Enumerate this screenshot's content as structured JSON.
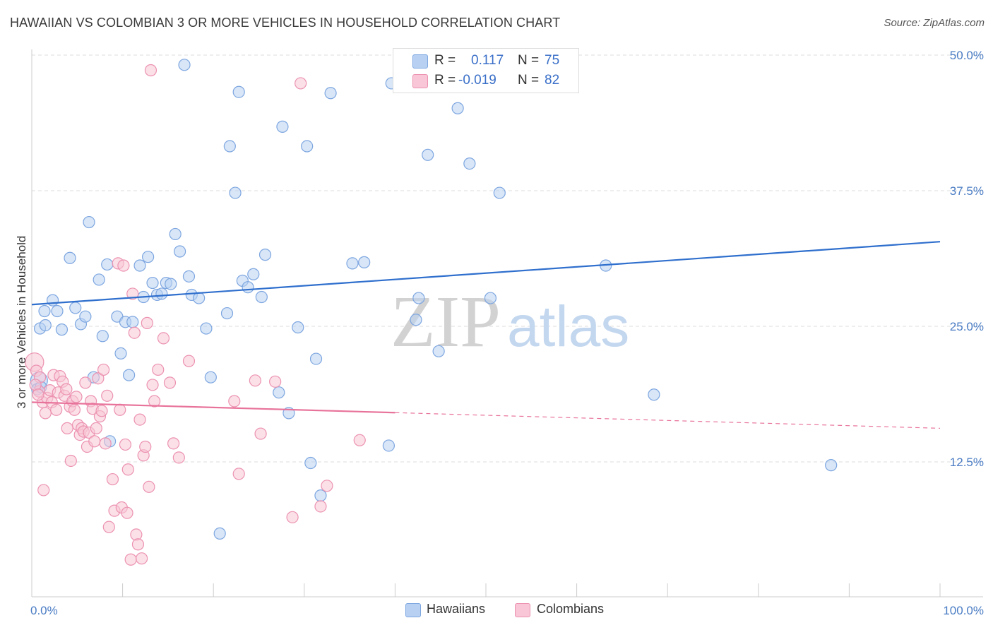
{
  "title": "HAWAIIAN VS COLOMBIAN 3 OR MORE VEHICLES IN HOUSEHOLD CORRELATION CHART",
  "source": "Source: ZipAtlas.com",
  "watermark": {
    "zip": "ZIP",
    "atlas": "atlas"
  },
  "legend": {
    "hawaiians": {
      "r_label": "R =",
      "r_value": "0.117",
      "n_label": "N =",
      "n_value": "75"
    },
    "colombians": {
      "r_label": "R =",
      "r_value": "-0.019",
      "n_label": "N =",
      "n_value": "82"
    }
  },
  "bottom_legend": {
    "hawaiians": "Hawaiians",
    "colombians": "Colombians"
  },
  "colors": {
    "hawaiian_fill": "#b8d1f3",
    "hawaiian_stroke": "#7da6e0",
    "hawaiian_line": "#2f6fcd",
    "colombian_fill": "#f8c6d6",
    "colombian_stroke": "#ec92b0",
    "colombian_line": "#e8739a",
    "tick_text": "#4a7cc4",
    "grid": "#dddddd"
  },
  "chart_data": {
    "type": "scatter",
    "title": "HAWAIIAN VS COLOMBIAN 3 OR MORE VEHICLES IN HOUSEHOLD CORRELATION CHART",
    "xlabel": "",
    "ylabel": "3 or more Vehicles in Household",
    "xlim": [
      0,
      100
    ],
    "ylim": [
      0,
      52
    ],
    "x_tick_labels": [
      "0.0%",
      "100.0%"
    ],
    "y_ticks": [
      12.5,
      25.0,
      37.5,
      50.0
    ],
    "y_tick_labels": [
      "12.5%",
      "25.0%",
      "37.5%",
      "50.0%"
    ],
    "grid": true,
    "series": [
      {
        "name": "Hawaiians",
        "r": 0.117,
        "n": 75,
        "trend": {
          "x": [
            0,
            100
          ],
          "y": [
            27.0,
            32.8
          ],
          "dashed_from": null
        },
        "points": [
          [
            0.8,
            20.0
          ],
          [
            0.9,
            24.8
          ],
          [
            1.5,
            25.1
          ],
          [
            1.4,
            26.4
          ],
          [
            2.3,
            27.4
          ],
          [
            2.8,
            26.4
          ],
          [
            3.3,
            24.7
          ],
          [
            4.2,
            31.3
          ],
          [
            4.8,
            26.7
          ],
          [
            5.4,
            25.2
          ],
          [
            5.9,
            25.9
          ],
          [
            6.3,
            34.6
          ],
          [
            6.8,
            20.3
          ],
          [
            7.4,
            29.3
          ],
          [
            7.8,
            24.1
          ],
          [
            8.3,
            30.7
          ],
          [
            8.6,
            14.4
          ],
          [
            9.4,
            25.9
          ],
          [
            9.8,
            22.5
          ],
          [
            10.3,
            25.4
          ],
          [
            10.7,
            20.5
          ],
          [
            11.1,
            25.4
          ],
          [
            11.9,
            30.6
          ],
          [
            12.3,
            27.7
          ],
          [
            12.8,
            31.4
          ],
          [
            13.3,
            29.0
          ],
          [
            13.8,
            27.9
          ],
          [
            14.3,
            28.0
          ],
          [
            14.8,
            29.0
          ],
          [
            15.3,
            28.9
          ],
          [
            15.8,
            33.5
          ],
          [
            16.3,
            31.9
          ],
          [
            16.8,
            49.1
          ],
          [
            17.3,
            29.6
          ],
          [
            17.6,
            27.9
          ],
          [
            18.4,
            27.6
          ],
          [
            19.2,
            24.8
          ],
          [
            19.7,
            20.3
          ],
          [
            20.7,
            5.9
          ],
          [
            21.5,
            26.2
          ],
          [
            21.8,
            41.6
          ],
          [
            22.4,
            37.3
          ],
          [
            22.8,
            46.6
          ],
          [
            23.2,
            29.2
          ],
          [
            23.8,
            28.6
          ],
          [
            24.4,
            29.8
          ],
          [
            25.3,
            27.7
          ],
          [
            25.7,
            31.6
          ],
          [
            27.2,
            18.9
          ],
          [
            27.6,
            43.4
          ],
          [
            28.3,
            17.0
          ],
          [
            29.3,
            24.9
          ],
          [
            30.3,
            41.6
          ],
          [
            30.7,
            12.4
          ],
          [
            31.3,
            22.0
          ],
          [
            31.8,
            9.4
          ],
          [
            32.9,
            46.5
          ],
          [
            35.3,
            30.8
          ],
          [
            36.6,
            30.9
          ],
          [
            39.3,
            14.0
          ],
          [
            39.6,
            47.4
          ],
          [
            42.3,
            25.6
          ],
          [
            42.6,
            27.6
          ],
          [
            43.6,
            40.8
          ],
          [
            44.8,
            22.7
          ],
          [
            46.9,
            45.1
          ],
          [
            48.2,
            40.0
          ],
          [
            50.5,
            27.6
          ],
          [
            51.5,
            37.3
          ],
          [
            59.5,
            48.6
          ],
          [
            63.2,
            30.6
          ],
          [
            68.5,
            18.7
          ],
          [
            88.0,
            12.2
          ],
          [
            0.6,
            19.2
          ],
          [
            1.0,
            19.4
          ]
        ]
      },
      {
        "name": "Colombians",
        "r": -0.019,
        "n": 82,
        "trend": {
          "x": [
            0,
            100
          ],
          "y": [
            18.0,
            15.6
          ],
          "dashed_from": 40
        },
        "points": [
          [
            0.3,
            21.7
          ],
          [
            0.5,
            20.9
          ],
          [
            0.8,
            19.0
          ],
          [
            0.9,
            20.3
          ],
          [
            1.2,
            18.0
          ],
          [
            1.3,
            9.9
          ],
          [
            1.5,
            17.0
          ],
          [
            1.7,
            18.4
          ],
          [
            2.0,
            19.1
          ],
          [
            2.2,
            18.0
          ],
          [
            2.4,
            20.5
          ],
          [
            2.7,
            17.3
          ],
          [
            2.9,
            18.9
          ],
          [
            3.1,
            20.4
          ],
          [
            3.4,
            19.9
          ],
          [
            3.6,
            18.6
          ],
          [
            3.8,
            19.2
          ],
          [
            3.9,
            15.6
          ],
          [
            4.2,
            17.6
          ],
          [
            4.3,
            12.6
          ],
          [
            4.5,
            18.1
          ],
          [
            4.7,
            17.3
          ],
          [
            4.9,
            18.5
          ],
          [
            5.1,
            15.9
          ],
          [
            5.3,
            15.0
          ],
          [
            5.5,
            15.6
          ],
          [
            5.7,
            15.3
          ],
          [
            5.9,
            19.8
          ],
          [
            6.1,
            13.9
          ],
          [
            6.3,
            15.2
          ],
          [
            6.5,
            18.1
          ],
          [
            6.7,
            17.4
          ],
          [
            6.9,
            14.4
          ],
          [
            7.1,
            15.6
          ],
          [
            7.3,
            20.2
          ],
          [
            7.5,
            16.7
          ],
          [
            7.7,
            17.2
          ],
          [
            7.9,
            21.0
          ],
          [
            8.1,
            14.2
          ],
          [
            8.3,
            18.6
          ],
          [
            8.5,
            6.5
          ],
          [
            8.9,
            10.9
          ],
          [
            9.1,
            8.0
          ],
          [
            9.5,
            30.8
          ],
          [
            9.7,
            17.3
          ],
          [
            9.9,
            8.3
          ],
          [
            10.1,
            30.6
          ],
          [
            10.3,
            14.1
          ],
          [
            10.5,
            7.8
          ],
          [
            10.6,
            11.8
          ],
          [
            10.9,
            3.5
          ],
          [
            11.1,
            28.0
          ],
          [
            11.3,
            24.4
          ],
          [
            11.5,
            5.8
          ],
          [
            11.7,
            4.9
          ],
          [
            11.9,
            16.4
          ],
          [
            12.1,
            3.6
          ],
          [
            12.3,
            13.1
          ],
          [
            12.5,
            13.9
          ],
          [
            12.7,
            25.3
          ],
          [
            12.9,
            10.2
          ],
          [
            13.1,
            48.6
          ],
          [
            13.3,
            19.6
          ],
          [
            13.5,
            18.1
          ],
          [
            13.9,
            21.0
          ],
          [
            14.5,
            23.9
          ],
          [
            15.2,
            19.8
          ],
          [
            15.6,
            14.2
          ],
          [
            16.2,
            12.9
          ],
          [
            17.3,
            21.8
          ],
          [
            22.3,
            18.1
          ],
          [
            22.8,
            11.4
          ],
          [
            24.6,
            20.0
          ],
          [
            25.2,
            15.1
          ],
          [
            26.8,
            19.9
          ],
          [
            28.7,
            7.4
          ],
          [
            29.6,
            47.4
          ],
          [
            31.8,
            8.4
          ],
          [
            32.5,
            10.3
          ],
          [
            36.1,
            14.5
          ],
          [
            0.4,
            19.6
          ],
          [
            0.7,
            18.7
          ]
        ]
      }
    ]
  }
}
